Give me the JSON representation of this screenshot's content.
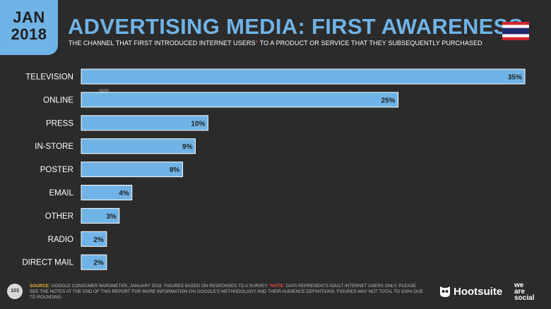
{
  "header": {
    "month": "JAN",
    "year": "2018",
    "title": "ADVERTISING MEDIA: FIRST AWARENESS",
    "subtitle_pre": "THE CHANNEL THAT FIRST INTRODUCED INTERNET USERS",
    "subtitle_asterisk": "*",
    "subtitle_post": " TO A PRODUCT OR SERVICE THAT THEY SUBSEQUENTLY PURCHASED",
    "flag_icon": "thailand-flag-icon"
  },
  "watermark": {
    "we": "we",
    "are": "are",
    "social": "social",
    "hootsuite": "Hootsuite"
  },
  "colors": {
    "background": "#2b2b2b",
    "accent": "#70b3e6",
    "bar": "#70b3e6",
    "bar_border": "#ffffff",
    "note": "#e8443a"
  },
  "chart_data": {
    "type": "bar",
    "orientation": "horizontal",
    "categories": [
      "TELEVISION",
      "ONLINE",
      "PRESS",
      "IN-STORE",
      "POSTER",
      "EMAIL",
      "OTHER",
      "RADIO",
      "DIRECT MAIL"
    ],
    "values": [
      35,
      25,
      10,
      9,
      8,
      4,
      3,
      2,
      2
    ],
    "value_labels": [
      "35%",
      "25%",
      "10%",
      "9%",
      "8%",
      "4%",
      "3%",
      "2%",
      "2%"
    ],
    "unit": "%",
    "xlim": [
      0,
      35
    ],
    "grid": false,
    "legend": "none"
  },
  "footer": {
    "page_number": "103",
    "source_label": "SOURCE:",
    "source_text": " GOOGLE CONSUMER BAROMETER, JANUARY 2018. FIGURES BASED ON RESPONSES TO A SURVEY. ",
    "note_label": "*NOTE:",
    "note_text": " DATA REPRESENTS ADULT INTERNET USERS ONLY; PLEASE SEE THE NOTES AT THE END OF THIS REPORT FOR MORE INFORMATION ON GOOGLE'S METHODOLOGY AND THEIR AUDIENCE DEFINITIONS. FIGURES MAY NOT TOTAL TO 100% DUE TO ROUNDING.",
    "brand_hootsuite": "Hootsuite",
    "brand_we": "we",
    "brand_are": "are",
    "brand_social": "social",
    "owl_icon": "hootsuite-owl-icon"
  }
}
